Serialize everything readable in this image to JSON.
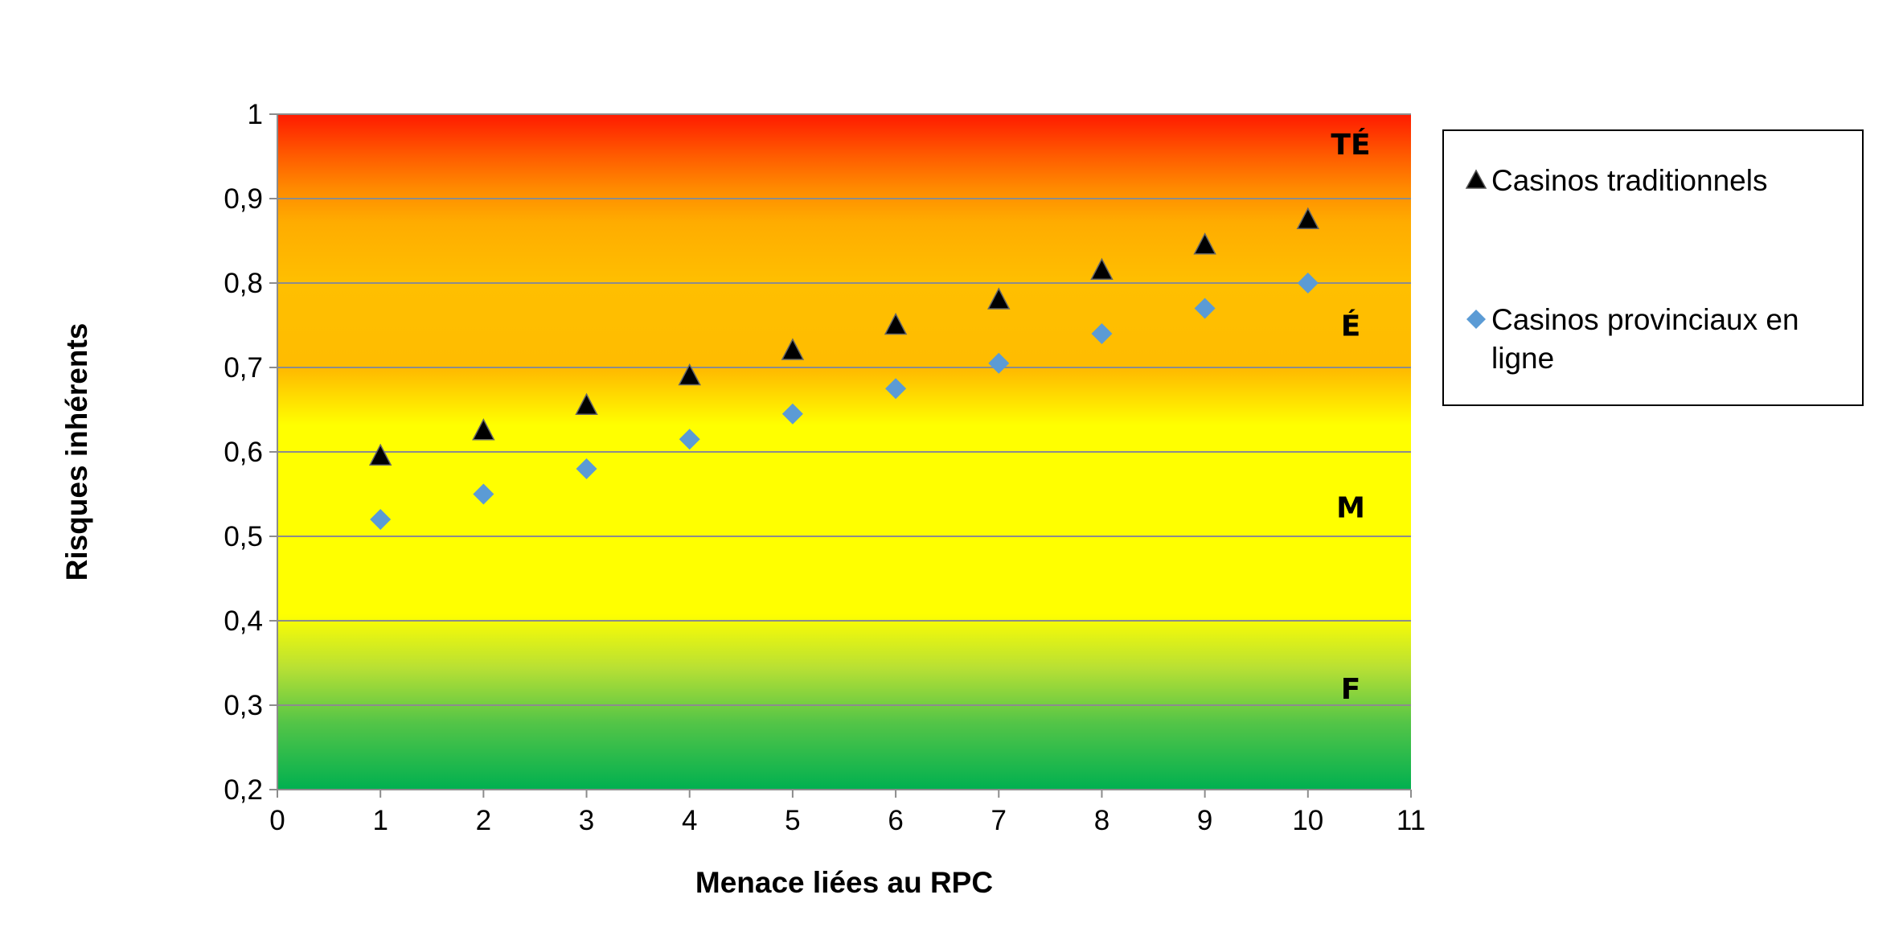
{
  "chart_data": {
    "type": "scatter",
    "title": "",
    "xlabel": "Menace liées au RPC",
    "ylabel": "Risques inhérents",
    "xlim": [
      0,
      11
    ],
    "ylim": [
      0.2,
      1
    ],
    "x_ticks": [
      0,
      1,
      2,
      3,
      4,
      5,
      6,
      7,
      8,
      9,
      10,
      11
    ],
    "y_ticks": [
      0.2,
      0.3,
      0.4,
      0.5,
      0.6,
      0.7,
      0.8,
      0.9,
      1
    ],
    "y_tick_labels": [
      "0,2",
      "0,3",
      "0,4",
      "0,5",
      "0,6",
      "0,7",
      "0,8",
      "0,9",
      "1"
    ],
    "grid": "horizontal",
    "legend_position": "right",
    "background_zones": [
      {
        "label": "TÉ",
        "label_y": 0.965
      },
      {
        "label": "É",
        "label_y": 0.75
      },
      {
        "label": "M",
        "label_y": 0.535
      },
      {
        "label": "F",
        "label_y": 0.32
      }
    ],
    "series": [
      {
        "name": "Casinos traditionnels",
        "marker": "triangle",
        "color": "#000000",
        "x": [
          1,
          2,
          3,
          4,
          5,
          6,
          7,
          8,
          9,
          10
        ],
        "y": [
          0.595,
          0.625,
          0.655,
          0.69,
          0.72,
          0.75,
          0.78,
          0.815,
          0.845,
          0.875
        ]
      },
      {
        "name": "Casinos provinciaux en ligne",
        "marker": "diamond",
        "color": "#5B9BD5",
        "x": [
          1,
          2,
          3,
          4,
          5,
          6,
          7,
          8,
          9,
          10
        ],
        "y": [
          0.52,
          0.55,
          0.58,
          0.615,
          0.645,
          0.675,
          0.705,
          0.74,
          0.77,
          0.8
        ]
      }
    ]
  }
}
